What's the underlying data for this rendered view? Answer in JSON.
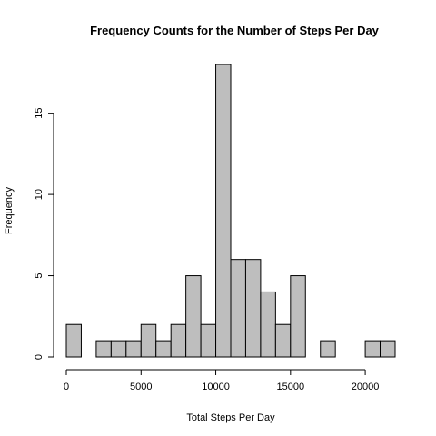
{
  "chart_data": {
    "type": "bar",
    "title": "Frequency Counts for the Number of Steps Per Day",
    "xlabel": "Total Steps Per Day",
    "ylabel": "Frequency",
    "bin_width": 1000,
    "bins": [
      {
        "start": 0,
        "end": 1000,
        "count": 2
      },
      {
        "start": 1000,
        "end": 2000,
        "count": 0
      },
      {
        "start": 2000,
        "end": 3000,
        "count": 1
      },
      {
        "start": 3000,
        "end": 4000,
        "count": 1
      },
      {
        "start": 4000,
        "end": 5000,
        "count": 1
      },
      {
        "start": 5000,
        "end": 6000,
        "count": 2
      },
      {
        "start": 6000,
        "end": 7000,
        "count": 1
      },
      {
        "start": 7000,
        "end": 8000,
        "count": 2
      },
      {
        "start": 8000,
        "end": 9000,
        "count": 5
      },
      {
        "start": 9000,
        "end": 10000,
        "count": 2
      },
      {
        "start": 10000,
        "end": 11000,
        "count": 18
      },
      {
        "start": 11000,
        "end": 12000,
        "count": 6
      },
      {
        "start": 12000,
        "end": 13000,
        "count": 6
      },
      {
        "start": 13000,
        "end": 14000,
        "count": 4
      },
      {
        "start": 14000,
        "end": 15000,
        "count": 2
      },
      {
        "start": 15000,
        "end": 16000,
        "count": 5
      },
      {
        "start": 16000,
        "end": 17000,
        "count": 0
      },
      {
        "start": 17000,
        "end": 18000,
        "count": 1
      },
      {
        "start": 18000,
        "end": 19000,
        "count": 0
      },
      {
        "start": 19000,
        "end": 20000,
        "count": 0
      },
      {
        "start": 20000,
        "end": 21000,
        "count": 1
      },
      {
        "start": 21000,
        "end": 22000,
        "count": 1
      }
    ],
    "xlim": [
      0,
      22000
    ],
    "ylim": [
      0,
      18
    ],
    "x_ticks": [
      0,
      5000,
      10000,
      15000,
      20000
    ],
    "y_ticks": [
      0,
      5,
      10,
      15
    ],
    "grid": false,
    "legend": "none",
    "bar_fill": "#bebebe",
    "bar_stroke": "#000000"
  }
}
